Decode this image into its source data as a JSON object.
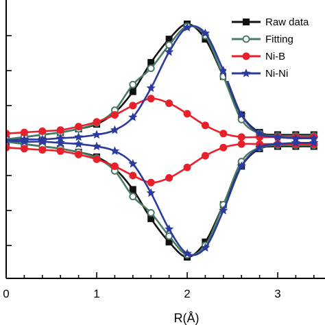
{
  "chart_data": {
    "type": "line",
    "xlabel": "R(Å)",
    "ylabel": "",
    "xlim": [
      0,
      3.45
    ],
    "ylim": [
      -1.0,
      1.0
    ],
    "x_ticks": [
      0,
      1,
      2,
      3
    ],
    "y_ticks": [
      -0.9,
      -0.6,
      -0.3,
      0.3,
      0.6,
      0.9
    ],
    "legend_position": "top-right",
    "legend": [
      "Raw data",
      "Fitting",
      "Ni-B",
      "Ni-Ni"
    ],
    "series": [
      {
        "name": "Raw data",
        "color": "#111111",
        "marker": "square-filled",
        "x": [
          0,
          0.2,
          0.4,
          0.6,
          0.8,
          1.0,
          1.2,
          1.4,
          1.6,
          1.8,
          2.0,
          2.2,
          2.4,
          2.6,
          2.8,
          3.0,
          3.2,
          3.4
        ],
        "upper": [
          0.01,
          0.03,
          0.05,
          0.07,
          0.1,
          0.14,
          0.24,
          0.42,
          0.67,
          0.87,
          1.0,
          0.87,
          0.55,
          0.22,
          0.07,
          0.05,
          0.05,
          0.05
        ],
        "lower": [
          -0.01,
          -0.03,
          -0.05,
          -0.07,
          -0.1,
          -0.14,
          -0.24,
          -0.42,
          -0.67,
          -0.87,
          -1.0,
          -0.87,
          -0.55,
          -0.22,
          -0.07,
          -0.05,
          -0.05,
          -0.05
        ]
      },
      {
        "name": "Fitting",
        "color": "#4a7c63",
        "marker": "circle-open",
        "x": [
          0,
          0.2,
          0.4,
          0.6,
          0.8,
          1.0,
          1.2,
          1.4,
          1.6,
          1.8,
          2.0,
          2.2,
          2.4,
          2.6,
          2.8,
          3.0,
          3.2,
          3.4
        ],
        "upper": [
          0.01,
          0.03,
          0.05,
          0.07,
          0.1,
          0.15,
          0.26,
          0.48,
          0.62,
          0.82,
          0.98,
          0.9,
          0.55,
          0.18,
          0.06,
          0.04,
          0.04,
          0.04
        ],
        "lower": [
          -0.01,
          -0.03,
          -0.05,
          -0.07,
          -0.1,
          -0.15,
          -0.26,
          -0.48,
          -0.62,
          -0.82,
          -0.98,
          -0.9,
          -0.55,
          -0.18,
          -0.06,
          -0.04,
          -0.04,
          -0.04
        ]
      },
      {
        "name": "Ni-B",
        "color": "#e8202a",
        "marker": "circle-filled",
        "x": [
          0,
          0.2,
          0.4,
          0.6,
          0.8,
          1.0,
          1.2,
          1.4,
          1.6,
          1.8,
          2.0,
          2.2,
          2.4,
          2.6,
          2.8,
          3.0,
          3.2,
          3.4
        ],
        "upper": [
          0.06,
          0.07,
          0.08,
          0.09,
          0.12,
          0.16,
          0.22,
          0.3,
          0.36,
          0.32,
          0.23,
          0.13,
          0.06,
          0.03,
          0.03,
          0.03,
          0.03,
          0.03
        ],
        "lower": [
          -0.06,
          -0.07,
          -0.08,
          -0.09,
          -0.12,
          -0.16,
          -0.22,
          -0.3,
          -0.36,
          -0.32,
          -0.23,
          -0.13,
          -0.06,
          -0.03,
          -0.03,
          -0.03,
          -0.03,
          -0.03
        ]
      },
      {
        "name": "Ni-Ni",
        "color": "#2b3a9e",
        "marker": "star-filled",
        "x": [
          0,
          0.2,
          0.4,
          0.6,
          0.8,
          1.0,
          1.2,
          1.4,
          1.6,
          1.8,
          2.0,
          2.2,
          2.4,
          2.6,
          2.8,
          3.0,
          3.2,
          3.4
        ],
        "upper": [
          0.0,
          0.01,
          0.01,
          0.02,
          0.03,
          0.05,
          0.09,
          0.2,
          0.45,
          0.76,
          0.97,
          0.92,
          0.6,
          0.22,
          0.06,
          0.03,
          0.02,
          0.02
        ],
        "lower": [
          0.0,
          -0.01,
          -0.01,
          -0.02,
          -0.03,
          -0.05,
          -0.09,
          -0.2,
          -0.45,
          -0.76,
          -0.97,
          -0.92,
          -0.6,
          -0.22,
          -0.06,
          -0.03,
          -0.02,
          -0.02
        ]
      }
    ]
  }
}
